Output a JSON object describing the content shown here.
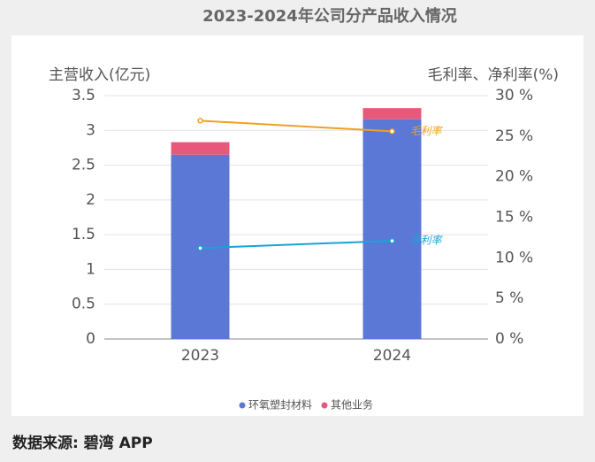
{
  "chart_data": {
    "type": "bar",
    "stacked": true,
    "title": "2023-2024年公司分产品收入情况",
    "y_label": "主营收入(亿元)",
    "y2_label": "毛利率、净利率(%)",
    "categories": [
      "2023",
      "2024"
    ],
    "series": [
      {
        "name": "环氧塑封材料",
        "color": "#5b78d6",
        "values": [
          2.65,
          3.16
        ]
      },
      {
        "name": "其他业务",
        "color": "#e8587a",
        "values": [
          0.18,
          0.16
        ]
      },
      {
        "name": "毛利率",
        "type": "line",
        "axis": "y2",
        "color": "#f0a020",
        "values": [
          26.9,
          25.6
        ]
      },
      {
        "name": "净利率",
        "type": "line",
        "axis": "y2",
        "color": "#1aa3d6",
        "values": [
          11.2,
          12.1
        ]
      }
    ],
    "ylim": [
      0,
      3.5
    ],
    "yticks": [
      0,
      0.5,
      1,
      1.5,
      2,
      2.5,
      3,
      3.5
    ],
    "y2lim": [
      0,
      30
    ],
    "y2ticks": [
      {
        "value": 0,
        "label": "0 %"
      },
      {
        "value": 5,
        "label": "5 %"
      },
      {
        "value": 10,
        "label": "10 %"
      },
      {
        "value": 15,
        "label": "15 %"
      },
      {
        "value": 20,
        "label": "20 %"
      },
      {
        "value": 25,
        "label": "25 %"
      },
      {
        "value": 30,
        "label": "30 %"
      }
    ],
    "grid": true,
    "source": "数据来源: 碧湾 APP"
  }
}
